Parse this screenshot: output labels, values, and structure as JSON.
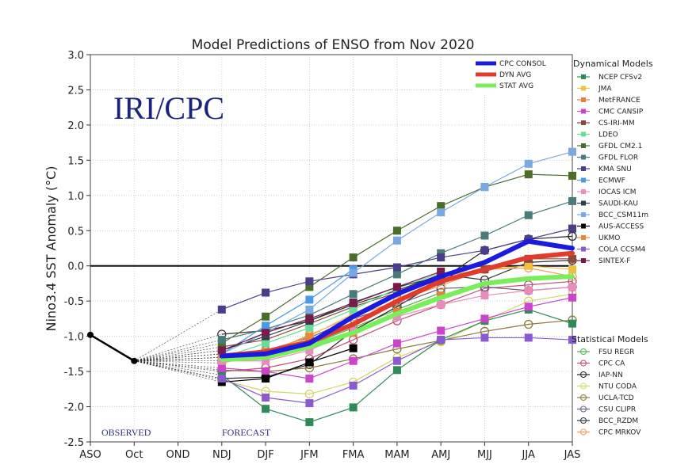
{
  "chart_data": {
    "type": "line",
    "title": "Model Predictions of ENSO from Nov 2020",
    "xlabel": "",
    "ylabel": "Nino3.4 SST Anomaly (°C)",
    "ylim": [
      -2.5,
      3.0
    ],
    "yticks": [
      "-2.5",
      "-2.0",
      "-1.5",
      "-1.0",
      "-0.5",
      "0.0",
      "0.5",
      "1.0",
      "1.5",
      "2.0",
      "2.5",
      "3.0"
    ],
    "ytick_values": [
      -2.5,
      -2.0,
      -1.5,
      -1.0,
      -0.5,
      0.0,
      0.5,
      1.0,
      1.5,
      2.0,
      2.5,
      3.0
    ],
    "categories": [
      "ASO",
      "Oct",
      "OND",
      "NDJ",
      "DJF",
      "JFM",
      "FMA",
      "MAM",
      "AMJ",
      "MJJ",
      "JJA",
      "JAS"
    ],
    "grid": true,
    "watermark": "IRI/CPC",
    "observed_label": "OBSERVED",
    "forecast_label": "FORECAST",
    "observed": {
      "name": "Observed",
      "color": "#000000",
      "values": [
        -0.98,
        -1.35
      ]
    },
    "summary_series": [
      {
        "name": "CPC CONSOL",
        "color": "#1a1ae0",
        "values": [
          -1.28,
          -1.25,
          -1.1,
          -0.72,
          -0.4,
          -0.15,
          0.05,
          0.35,
          0.25
        ]
      },
      {
        "name": "DYN AVG",
        "color": "#e03c2c",
        "values": [
          -1.28,
          -1.22,
          -1.08,
          -0.83,
          -0.5,
          -0.22,
          -0.05,
          0.12,
          0.18
        ]
      },
      {
        "name": "STAT AVG",
        "color": "#78ee5a",
        "values": [
          -1.33,
          -1.3,
          -1.15,
          -0.95,
          -0.68,
          -0.45,
          -0.25,
          -0.18,
          -0.15
        ]
      }
    ],
    "legend_summary_position": "top-right",
    "dynamical_title": "Dynamical Models",
    "dynamical_models": [
      {
        "name": "NCEP CFSv2",
        "color": "#2e8b57",
        "values": [
          -1.55,
          -2.03,
          -2.22,
          -2.01,
          -1.48,
          -1.05,
          -0.78,
          -0.62,
          -0.82
        ]
      },
      {
        "name": "JMA",
        "color": "#f0c040",
        "values": [
          -1.3,
          -1.25,
          -1.0,
          -0.68,
          -0.38,
          -0.15,
          -0.05,
          0.0,
          -0.05
        ]
      },
      {
        "name": "MetFRANCE",
        "color": "#e8803a",
        "values": [
          -1.35,
          -1.22,
          -1.1,
          -0.95,
          -0.65,
          -0.42,
          null,
          null,
          null
        ]
      },
      {
        "name": "CMC CANSIP",
        "color": "#cc44cc",
        "values": [
          -1.45,
          -1.5,
          -1.6,
          -1.35,
          -1.1,
          -0.92,
          -0.75,
          -0.58,
          -0.45
        ]
      },
      {
        "name": "CS-IRI-MM",
        "color": "#8b4a3a",
        "values": [
          -1.15,
          -1.05,
          -0.82,
          -0.58,
          -0.38,
          -0.2,
          -0.05,
          0.1,
          0.1
        ]
      },
      {
        "name": "LDEO",
        "color": "#66dd99",
        "values": [
          -1.3,
          -1.1,
          -0.88,
          -0.62,
          -0.32,
          -0.1,
          null,
          null,
          null
        ]
      },
      {
        "name": "GFDL CM2.1",
        "color": "#4a6e2a",
        "values": [
          -1.1,
          -0.72,
          -0.3,
          0.12,
          0.5,
          0.85,
          1.12,
          1.3,
          1.28
        ]
      },
      {
        "name": "GFDL FLOR",
        "color": "#4a7a7a",
        "values": [
          -1.05,
          -0.9,
          -0.7,
          -0.4,
          -0.12,
          0.18,
          0.43,
          0.72,
          0.92
        ]
      },
      {
        "name": "KMA SNU",
        "color": "#4a3e8a",
        "values": [
          -0.62,
          -0.38,
          -0.22,
          -0.12,
          -0.02,
          0.12,
          0.22,
          0.38,
          0.53
        ]
      },
      {
        "name": "ECMWF",
        "color": "#4a9ae6",
        "values": [
          -1.25,
          -0.85,
          -0.48,
          -0.05,
          null,
          null,
          null,
          null,
          null
        ]
      },
      {
        "name": "IOCAS ICM",
        "color": "#e88cbc",
        "values": [
          -1.35,
          -1.35,
          -1.2,
          -0.92,
          -0.72,
          -0.55,
          -0.42,
          -0.35,
          -0.3
        ]
      },
      {
        "name": "SAUDI-KAU",
        "color": "#2e3e4a",
        "values": [
          -1.2,
          -1.0,
          -0.78,
          -0.52,
          -0.3,
          -0.15,
          null,
          null,
          null
        ]
      },
      {
        "name": "BCC_CSM11m",
        "color": "#7aa8e0",
        "values": [
          -1.25,
          -0.95,
          -0.62,
          -0.1,
          0.36,
          0.76,
          1.12,
          1.45,
          1.62
        ]
      },
      {
        "name": "AUS-ACCESS",
        "color": "#000000",
        "values": [
          -1.65,
          -1.6,
          -1.37,
          -1.17,
          null,
          null,
          null,
          null,
          null
        ]
      },
      {
        "name": "UKMO",
        "color": "#e8883a",
        "values": [
          -1.25,
          -1.22,
          -1.0,
          null,
          null,
          null,
          null,
          null,
          null
        ]
      },
      {
        "name": "COLA CCSM4",
        "color": "#8a5ad0",
        "values": [
          -1.6,
          -1.87,
          -1.95,
          -1.7,
          -1.35,
          -1.05,
          -1.02,
          -1.02,
          -1.05
        ]
      },
      {
        "name": "SINTEX-F",
        "color": "#7a1a4a",
        "values": [
          -1.2,
          -0.95,
          -0.75,
          -0.53,
          -0.3,
          -0.08,
          null,
          null,
          null
        ]
      }
    ],
    "statistical_title": "Statistical Models",
    "statistical_models": [
      {
        "name": "FSU REGR",
        "color": "#4caf50",
        "values": [
          -1.3,
          -1.25,
          -1.12,
          -0.88,
          -0.62,
          -0.38,
          null,
          null,
          null
        ]
      },
      {
        "name": "CPC CA",
        "color": "#c0507a",
        "values": [
          -1.5,
          -1.45,
          -1.32,
          -1.05,
          -0.78,
          -0.55,
          -0.32,
          -0.27,
          -0.22
        ]
      },
      {
        "name": "IAP-NN",
        "color": "#222222",
        "values": [
          -1.6,
          -1.58,
          -1.4,
          -0.92,
          -0.58,
          -0.2,
          0.22,
          0.38,
          0.42
        ]
      },
      {
        "name": "NTU CODA",
        "color": "#d4d46a",
        "values": [
          -1.62,
          -1.78,
          -1.82,
          -1.65,
          -1.3,
          -1.08,
          -0.78,
          -0.5,
          -0.4
        ]
      },
      {
        "name": "UCLA-TCD",
        "color": "#8a7a3a",
        "values": [
          -1.48,
          -1.5,
          -1.45,
          -1.32,
          -1.18,
          -1.06,
          -0.93,
          -0.83,
          -0.77
        ]
      },
      {
        "name": "CSU CLIPR",
        "color": "#6a5a7a",
        "values": [
          -1.35,
          -1.2,
          -1.02,
          -0.75,
          -0.55,
          -0.32,
          -0.3,
          -0.35,
          -0.3
        ]
      },
      {
        "name": "BCC_RZDM",
        "color": "#333333",
        "values": [
          -0.97,
          -0.92,
          -0.78,
          -0.55,
          -0.35,
          -0.12,
          -0.2,
          0.05,
          0.08
        ]
      },
      {
        "name": "CPC MRKOV",
        "color": "#e8a060",
        "values": [
          -1.38,
          -1.25,
          -0.98,
          -0.72,
          -0.5,
          -0.28,
          -0.05,
          -0.03,
          -0.15
        ]
      }
    ]
  }
}
